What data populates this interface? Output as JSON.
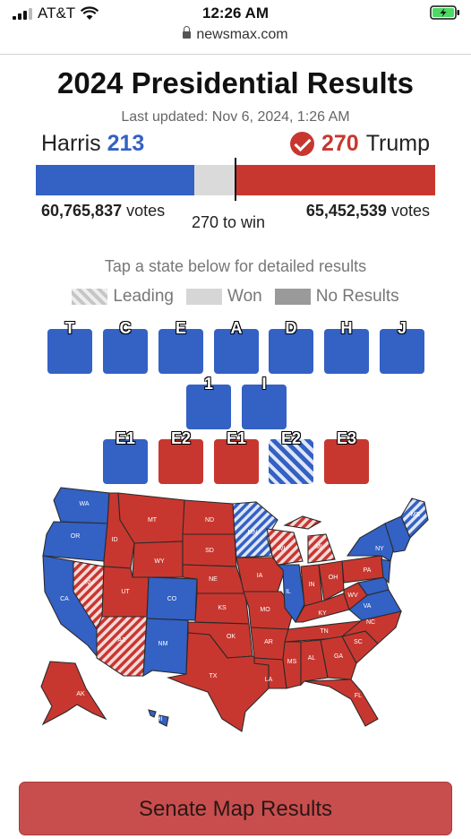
{
  "status": {
    "carrier": "AT&T",
    "time": "12:26 AM",
    "url": "newsmax.com"
  },
  "page": {
    "title": "2024 Presidential Results",
    "updated": "Last updated: Nov 6, 2024, 1:26 AM"
  },
  "candidates": {
    "left": {
      "name": "Harris",
      "electoral": "213",
      "votes": "60,765,837",
      "color": "#3361c4"
    },
    "right": {
      "name": "Trump",
      "electoral": "270",
      "votes": "65,452,539",
      "color": "#c8372f"
    },
    "votes_word": "votes",
    "to_win": "270 to win",
    "bar_shares": {
      "dem": 0.397,
      "other": 0.1,
      "rep": 0.503
    }
  },
  "legend": {
    "tap_hint": "Tap a state below for detailed results",
    "leading": "Leading",
    "won": "Won",
    "no_results": "No Results"
  },
  "tiles": {
    "row1": [
      {
        "label": "T",
        "color": "blue"
      },
      {
        "label": "C",
        "color": "blue"
      },
      {
        "label": "E",
        "color": "blue"
      },
      {
        "label": "A",
        "color": "blue"
      },
      {
        "label": "D",
        "color": "blue"
      },
      {
        "label": "H",
        "color": "blue"
      },
      {
        "label": "J",
        "color": "blue"
      }
    ],
    "row2": [
      {
        "label": "1",
        "color": "blue"
      },
      {
        "label": "I",
        "color": "blue"
      }
    ],
    "row3": [
      {
        "label": "E1",
        "color": "blue"
      },
      {
        "label": "E2",
        "color": "red"
      },
      {
        "label": "E1",
        "color": "red"
      },
      {
        "label": "E2",
        "color": "hatch"
      },
      {
        "label": "E3",
        "color": "red"
      }
    ]
  },
  "map": {
    "states": [
      "WA",
      "OR",
      "CA",
      "ID",
      "NV",
      "MT",
      "WY",
      "UT",
      "AZ",
      "CO",
      "NM",
      "ND",
      "SD",
      "NE",
      "KS",
      "OK",
      "TX",
      "MN",
      "IA",
      "MO",
      "AR",
      "LA",
      "WI",
      "IL",
      "MI",
      "IN",
      "OH",
      "KY",
      "TN",
      "MS",
      "AL",
      "GA",
      "FL",
      "SC",
      "NC",
      "VA",
      "WV",
      "PA",
      "NY",
      "ME",
      "AK",
      "HI"
    ]
  },
  "buttons": {
    "senate": "Senate Map Results"
  }
}
